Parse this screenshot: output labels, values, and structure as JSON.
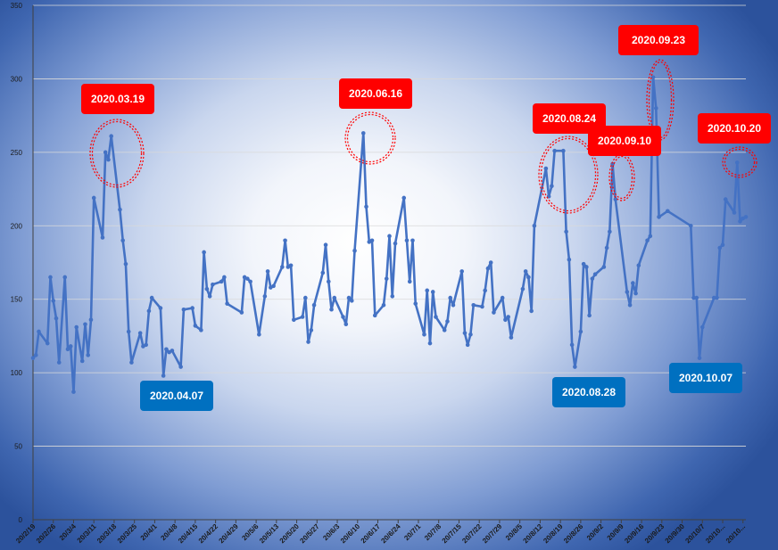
{
  "chart_data": {
    "type": "line",
    "title": "",
    "xlabel": "",
    "ylabel": "",
    "ylim": [
      0,
      350
    ],
    "yticks": [
      0,
      50,
      100,
      150,
      200,
      250,
      300,
      350
    ],
    "grid": true,
    "legend": "none",
    "x_tick_labels": [
      "20/2/19",
      "20/2/26",
      "20/3/4",
      "20/3/11",
      "20/3/18",
      "20/3/25",
      "20/4/1",
      "20/4/8",
      "20/4/15",
      "20/4/22",
      "20/4/29",
      "20/5/6",
      "20/5/13",
      "20/5/20",
      "20/5/27",
      "20/6/3",
      "20/6/10",
      "20/6/17",
      "20/6/24",
      "20/7/1",
      "20/7/8",
      "20/7/15",
      "20/7/22",
      "20/7/29",
      "20/8/5",
      "20/8/12",
      "20/8/19",
      "20/8/26",
      "20/9/2",
      "20/9/9",
      "20/9/16",
      "20/9/23",
      "20/9/30",
      "20/10/7",
      "20/10...",
      "20/10..."
    ],
    "series": [
      {
        "color": "#4472c4",
        "values": [
          [
            0,
            110
          ],
          [
            1,
            112
          ],
          [
            2,
            128
          ],
          [
            5,
            120
          ],
          [
            6,
            165
          ],
          [
            7,
            149
          ],
          [
            8,
            137
          ],
          [
            9,
            107
          ],
          [
            11,
            165
          ],
          [
            12,
            116
          ],
          [
            13,
            118
          ],
          [
            14,
            87
          ],
          [
            15,
            131
          ],
          [
            17,
            108
          ],
          [
            18,
            133
          ],
          [
            19,
            112
          ],
          [
            20,
            136
          ],
          [
            21,
            219
          ],
          [
            24,
            192
          ],
          [
            25,
            250
          ],
          [
            26,
            245
          ],
          [
            27,
            261
          ],
          [
            30,
            211
          ],
          [
            31,
            190
          ],
          [
            32,
            174
          ],
          [
            33,
            128
          ],
          [
            34,
            107
          ],
          [
            37,
            127
          ],
          [
            38,
            118
          ],
          [
            39,
            119
          ],
          [
            40,
            142
          ],
          [
            41,
            151
          ],
          [
            44,
            144
          ],
          [
            45,
            98
          ],
          [
            46,
            116
          ],
          [
            47,
            114
          ],
          [
            48,
            115
          ],
          [
            51,
            104
          ],
          [
            52,
            143
          ],
          [
            55,
            144
          ],
          [
            56,
            132
          ],
          [
            58,
            129
          ],
          [
            59,
            182
          ],
          [
            60,
            157
          ],
          [
            61,
            152
          ],
          [
            62,
            160
          ],
          [
            65,
            162
          ],
          [
            66,
            165
          ],
          [
            67,
            147
          ],
          [
            72,
            141
          ],
          [
            73,
            165
          ],
          [
            74,
            164
          ],
          [
            75,
            162
          ],
          [
            78,
            126
          ],
          [
            80,
            152
          ],
          [
            81,
            169
          ],
          [
            82,
            158
          ],
          [
            83,
            159
          ],
          [
            86,
            172
          ],
          [
            87,
            190
          ],
          [
            88,
            172
          ],
          [
            89,
            173
          ],
          [
            90,
            136
          ],
          [
            93,
            138
          ],
          [
            94,
            151
          ],
          [
            95,
            121
          ],
          [
            96,
            129
          ],
          [
            97,
            146
          ],
          [
            100,
            168
          ],
          [
            101,
            187
          ],
          [
            102,
            162
          ],
          [
            103,
            143
          ],
          [
            104,
            151
          ],
          [
            107,
            138
          ],
          [
            108,
            133
          ],
          [
            109,
            151
          ],
          [
            110,
            149
          ],
          [
            111,
            183
          ],
          [
            114,
            263
          ],
          [
            115,
            213
          ],
          [
            116,
            189
          ],
          [
            117,
            190
          ],
          [
            118,
            139
          ],
          [
            121,
            146
          ],
          [
            122,
            164
          ],
          [
            123,
            193
          ],
          [
            124,
            152
          ],
          [
            125,
            188
          ],
          [
            128,
            219
          ],
          [
            129,
            190
          ],
          [
            130,
            162
          ],
          [
            131,
            190
          ],
          [
            132,
            147
          ],
          [
            135,
            126
          ],
          [
            136,
            156
          ],
          [
            137,
            120
          ],
          [
            138,
            155
          ],
          [
            139,
            138
          ],
          [
            142,
            129
          ],
          [
            143,
            135
          ],
          [
            144,
            151
          ],
          [
            145,
            146
          ],
          [
            148,
            169
          ],
          [
            149,
            127
          ],
          [
            150,
            119
          ],
          [
            151,
            126
          ],
          [
            152,
            146
          ],
          [
            155,
            145
          ],
          [
            156,
            156
          ],
          [
            157,
            171
          ],
          [
            158,
            175
          ],
          [
            159,
            141
          ],
          [
            162,
            151
          ],
          [
            163,
            136
          ],
          [
            164,
            138
          ],
          [
            165,
            124
          ],
          [
            169,
            157
          ],
          [
            170,
            169
          ],
          [
            171,
            165
          ],
          [
            172,
            142
          ],
          [
            173,
            200
          ],
          [
            177,
            239
          ],
          [
            178,
            220
          ],
          [
            179,
            227
          ],
          [
            180,
            251
          ],
          [
            183,
            251
          ],
          [
            184,
            196
          ],
          [
            185,
            177
          ],
          [
            186,
            119
          ],
          [
            187,
            104
          ],
          [
            189,
            128
          ],
          [
            190,
            174
          ],
          [
            191,
            172
          ],
          [
            192,
            139
          ],
          [
            193,
            164
          ],
          [
            194,
            167
          ],
          [
            197,
            172
          ],
          [
            198,
            185
          ],
          [
            199,
            196
          ],
          [
            200,
            242
          ],
          [
            201,
            218
          ],
          [
            205,
            155
          ],
          [
            206,
            146
          ],
          [
            207,
            161
          ],
          [
            208,
            154
          ],
          [
            209,
            173
          ],
          [
            212,
            190
          ],
          [
            213,
            193
          ],
          [
            214,
            301
          ],
          [
            215,
            280
          ],
          [
            216,
            206
          ],
          [
            219,
            210
          ],
          [
            227,
            200
          ],
          [
            228,
            151
          ],
          [
            229,
            151
          ],
          [
            230,
            110
          ],
          [
            231,
            131
          ],
          [
            235,
            151
          ],
          [
            236,
            151
          ],
          [
            237,
            185
          ],
          [
            238,
            187
          ],
          [
            239,
            218
          ],
          [
            242,
            209
          ],
          [
            243,
            243
          ],
          [
            244,
            203
          ],
          [
            245,
            205
          ],
          [
            246,
            206
          ]
        ]
      }
    ],
    "annotations": [
      {
        "label": "2020.03.19",
        "color": "#ff0000",
        "x": 27,
        "y": 261
      },
      {
        "label": "2020.04.07",
        "color": "#0070c0",
        "x": 45,
        "y": 98
      },
      {
        "label": "2020.06.16",
        "color": "#ff0000",
        "x": 114,
        "y": 263
      },
      {
        "label": "2020.08.24",
        "color": "#ff0000",
        "x": 180,
        "y": 251
      },
      {
        "label": "2020.08.28",
        "color": "#0070c0",
        "x": 187,
        "y": 104
      },
      {
        "label": "2020.09.10",
        "color": "#ff0000",
        "x": 200,
        "y": 242
      },
      {
        "label": "2020.09.23",
        "color": "#ff0000",
        "x": 214,
        "y": 301
      },
      {
        "label": "2020.10.07",
        "color": "#0070c0",
        "x": 230,
        "y": 110
      },
      {
        "label": "2020.10.20",
        "color": "#ff0000",
        "x": 243,
        "y": 243
      }
    ]
  }
}
